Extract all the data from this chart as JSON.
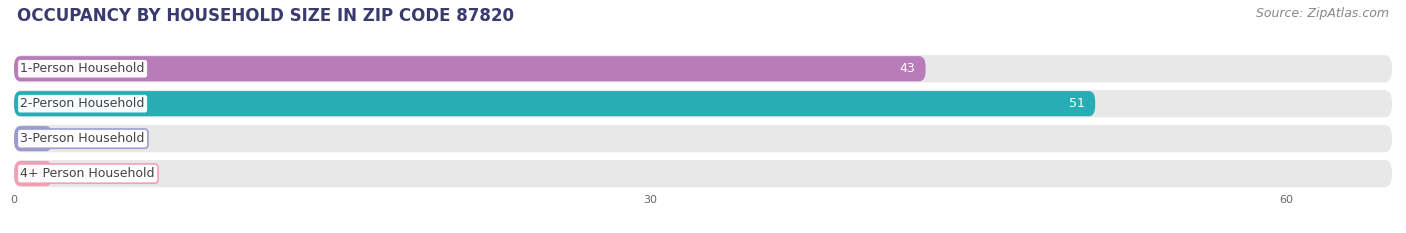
{
  "title": "OCCUPANCY BY HOUSEHOLD SIZE IN ZIP CODE 87820",
  "source": "Source: ZipAtlas.com",
  "categories": [
    "1-Person Household",
    "2-Person Household",
    "3-Person Household",
    "4+ Person Household"
  ],
  "values": [
    43,
    51,
    0,
    0
  ],
  "bar_colors": [
    "#b87cb8",
    "#29adb5",
    "#9b9bce",
    "#f0a0b5"
  ],
  "row_bg_color": "#ebebeb",
  "row_bg_light": "#f0f0f0",
  "background_color": "#ffffff",
  "chart_bg": "#f7f7f7",
  "xlim_data": [
    0,
    65
  ],
  "xticks": [
    0,
    30,
    60
  ],
  "title_fontsize": 12,
  "source_fontsize": 9,
  "bar_label_fontsize": 9,
  "category_fontsize": 9,
  "title_color": "#3a3a6e",
  "source_color": "#888888"
}
